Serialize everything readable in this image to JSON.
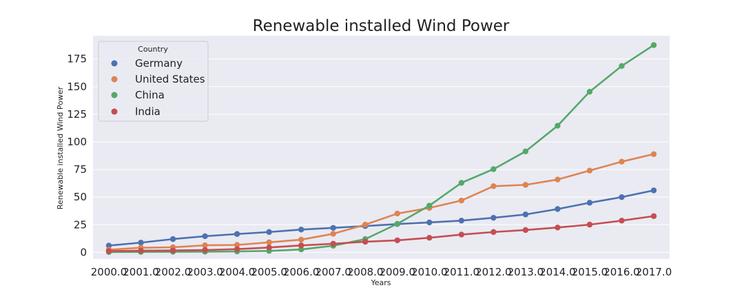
{
  "chart_data": {
    "type": "line",
    "title": "Renewable installed Wind Power",
    "xlabel": "Years",
    "ylabel": "Renewable installed Wind Power",
    "x": [
      "2000.0",
      "2001.0",
      "2002.0",
      "2003.0",
      "2004.0",
      "2005.0",
      "2006.0",
      "2007.0",
      "2008.0",
      "2009.0",
      "2010.0",
      "2011.0",
      "2012.0",
      "2013.0",
      "2014.0",
      "2015.0",
      "2016.0",
      "2017.0"
    ],
    "yticks": [
      "0",
      "25",
      "50",
      "75",
      "100",
      "125",
      "150",
      "175"
    ],
    "ylim": [
      -6,
      196
    ],
    "grid": true,
    "legend": {
      "title": "Country",
      "placement": "top-left"
    },
    "series": [
      {
        "name": "Germany",
        "color": "#4c72b0",
        "values": [
          6.1,
          8.8,
          12.0,
          14.6,
          16.6,
          18.4,
          20.6,
          22.2,
          23.8,
          25.6,
          27.1,
          28.7,
          31.3,
          34.3,
          39.2,
          44.9,
          50.0,
          56.1
        ]
      },
      {
        "name": "United States",
        "color": "#dd8452",
        "values": [
          2.4,
          4.2,
          4.6,
          6.4,
          6.7,
          9.1,
          11.5,
          16.8,
          25.1,
          35.1,
          40.2,
          46.9,
          59.9,
          61.1,
          65.9,
          74.0,
          82.1,
          88.9
        ]
      },
      {
        "name": "China",
        "color": "#55a868",
        "values": [
          0.3,
          0.4,
          0.5,
          0.6,
          0.8,
          1.3,
          2.6,
          6.0,
          12.0,
          25.8,
          42.3,
          62.9,
          75.3,
          91.4,
          114.6,
          145.4,
          168.7,
          187.6
        ]
      },
      {
        "name": "India",
        "color": "#c44e52",
        "values": [
          1.1,
          1.5,
          1.7,
          2.1,
          2.9,
          4.4,
          6.3,
          7.8,
          9.6,
          10.9,
          13.2,
          16.1,
          18.4,
          20.2,
          22.5,
          25.1,
          28.7,
          32.8
        ]
      }
    ]
  }
}
